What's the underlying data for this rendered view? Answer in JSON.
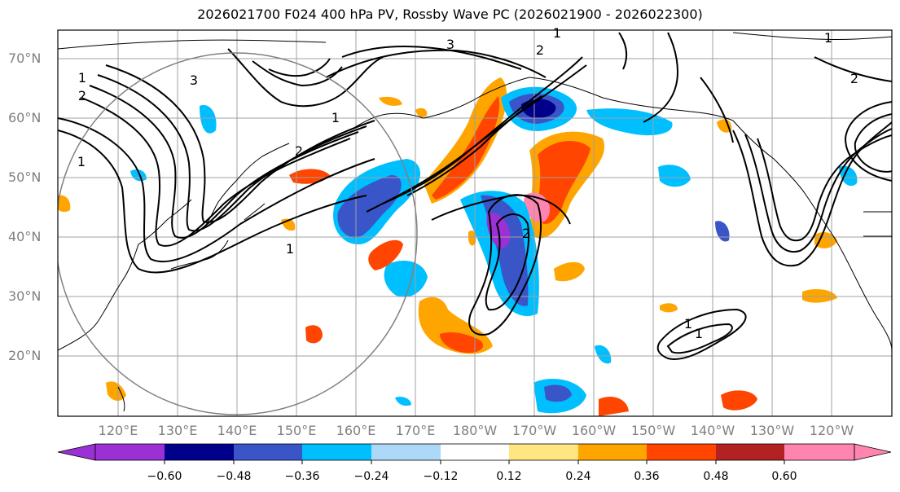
{
  "title": "2026021700 F024 400 hPa PV, Rossby Wave PC (2026021900 - 2026022300)",
  "lat_labels": [
    "70°N",
    "60°N",
    "50°N",
    "40°N",
    "30°N",
    "20°N"
  ],
  "lon_labels": [
    "120°E",
    "130°E",
    "140°E",
    "150°E",
    "160°E",
    "170°E",
    "180°W",
    "170°W",
    "160°W",
    "150°W",
    "140°W",
    "130°W",
    "120°W"
  ],
  "colorbar": {
    "ticks": [
      "−0.60",
      "−0.48",
      "−0.36",
      "−0.24",
      "−0.12",
      "0.12",
      "0.24",
      "0.36",
      "0.48",
      "0.60"
    ],
    "colors": [
      "#9b30d4",
      "#00008b",
      "#3a55c8",
      "#00bfff",
      "#add8f8",
      "#ffffff",
      "#ffe680",
      "#ffa500",
      "#ff4500",
      "#b22222",
      "#ff85b0"
    ]
  },
  "contour_labels": [
    "1",
    "2",
    "3",
    "1",
    "3",
    "2",
    "1",
    "1",
    "2",
    "1",
    "1",
    "2",
    "2",
    "1",
    "1"
  ]
}
